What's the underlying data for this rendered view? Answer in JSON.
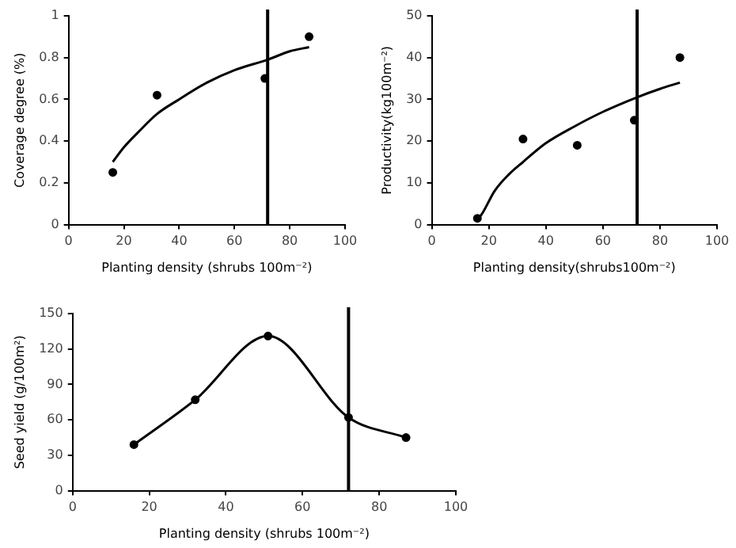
{
  "chart_data": [
    {
      "type": "scatter",
      "xlabel": "Planting density (shrubs 100m⁻²)",
      "ylabel": "Coverage degree (%)",
      "xlim": [
        0,
        100
      ],
      "xticks": [
        0,
        20,
        40,
        60,
        80,
        100
      ],
      "ylim": [
        0,
        1
      ],
      "yticks": [
        0,
        0.2,
        0.4,
        0.6,
        0.8,
        1
      ],
      "series": [
        {
          "color": "#000000",
          "marker": "circle",
          "x": [
            16,
            32,
            71,
            87
          ],
          "values": [
            0.25,
            0.62,
            0.7,
            0.9
          ]
        },
        {
          "type": "line",
          "color": "#000000",
          "marker": "none",
          "x": [
            16,
            20,
            25,
            32,
            40,
            50,
            60,
            72,
            80,
            87
          ],
          "values": [
            0.3,
            0.37,
            0.44,
            0.53,
            0.6,
            0.68,
            0.74,
            0.79,
            0.83,
            0.85
          ]
        }
      ],
      "ref_lines": [
        {
          "axis": "x",
          "value": 72,
          "color": "#000000"
        }
      ]
    },
    {
      "type": "scatter",
      "xlabel": "Planting density(shrubs100m⁻²)",
      "ylabel": "Productivity(kg100m⁻²)",
      "xlim": [
        0,
        100
      ],
      "xticks": [
        0,
        20,
        40,
        60,
        80,
        100
      ],
      "ylim": [
        0,
        50
      ],
      "yticks": [
        0,
        10,
        20,
        30,
        40,
        50
      ],
      "series": [
        {
          "color": "#000000",
          "marker": "circle",
          "x": [
            16,
            32,
            51,
            71,
            87
          ],
          "values": [
            1.5,
            20.5,
            19,
            25,
            40
          ]
        },
        {
          "type": "line",
          "color": "#000000",
          "marker": "none",
          "x": [
            16,
            18,
            22,
            27,
            32,
            40,
            50,
            60,
            72,
            80,
            87
          ],
          "values": [
            1,
            3,
            8,
            12,
            15,
            19.5,
            23.5,
            27,
            30.5,
            32.5,
            34
          ]
        }
      ],
      "ref_lines": [
        {
          "axis": "x",
          "value": 72,
          "color": "#000000"
        }
      ]
    },
    {
      "type": "line",
      "xlabel": "Planting density (shrubs 100m⁻²)",
      "ylabel": "Seed yield (g/100m²)",
      "xlim": [
        0,
        100
      ],
      "xticks": [
        0,
        20,
        40,
        60,
        80,
        100
      ],
      "ylim": [
        0,
        150
      ],
      "yticks": [
        0,
        30,
        60,
        90,
        120,
        150
      ],
      "series": [
        {
          "color": "#000000",
          "marker": "circle",
          "x": [
            16,
            32,
            51,
            72,
            87
          ],
          "values": [
            39,
            77,
            131,
            62,
            45
          ]
        }
      ],
      "ref_lines": [
        {
          "axis": "x",
          "value": 72,
          "color": "#000000"
        }
      ]
    }
  ]
}
